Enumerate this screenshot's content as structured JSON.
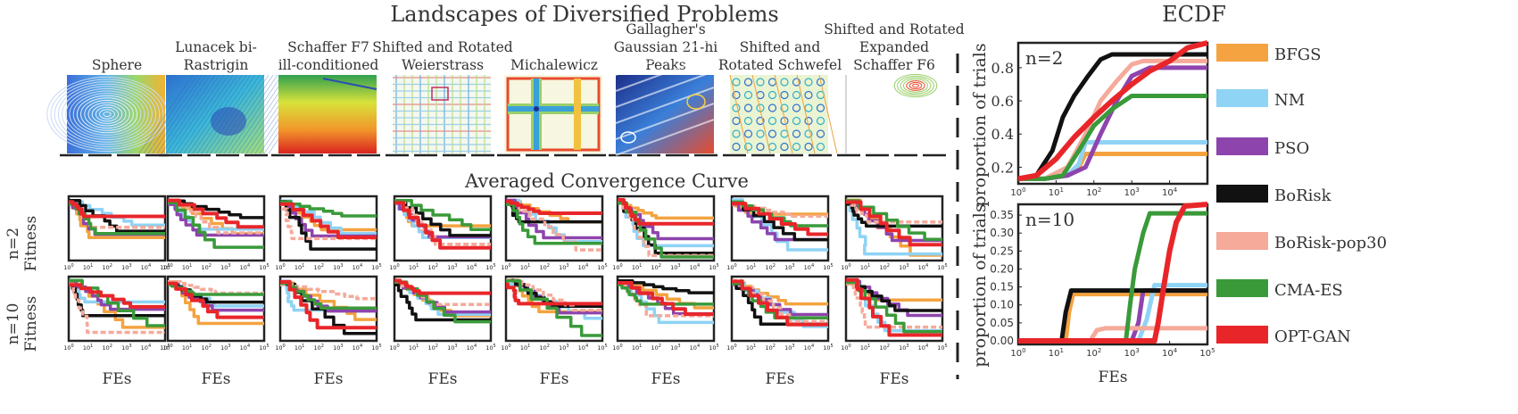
{
  "titles": {
    "landscapes": "Landscapes of Diversified Problems",
    "convergence": "Averaged Convergence Curve",
    "ecdf": "ECDF"
  },
  "colors": {
    "BFGS": "#f4a340",
    "NM": "#8fd3f5",
    "PSO": "#8e44ad",
    "BoRisk": "#111111",
    "BoRisk-pop30": "#f5aa9a",
    "CMA-ES": "#3a9a3a",
    "OPT-GAN": "#e8262a"
  },
  "legend": [
    "BFGS",
    "NM",
    "PSO",
    "BoRisk",
    "BoRisk-pop30",
    "CMA-ES",
    "OPT-GAN"
  ],
  "problems": [
    {
      "name": "Sphere",
      "lines": [
        "Sphere"
      ],
      "icon": "sphere-contour"
    },
    {
      "name": "Lunacek bi-Rastrigin",
      "lines": [
        "Lunacek bi-",
        "Rastrigin"
      ],
      "icon": "lunacek-contour"
    },
    {
      "name": "Schaffer F7 ill-conditioned",
      "lines": [
        "Schaffer F7",
        "ill-conditioned"
      ],
      "icon": "schaffer-contour"
    },
    {
      "name": "Shifted and Rotated Weierstrass",
      "lines": [
        "Shifted and Rotated",
        "Weierstrass"
      ],
      "icon": "weierstrass-contour"
    },
    {
      "name": "Michalewicz",
      "lines": [
        "Michalewicz"
      ],
      "icon": "michalewicz-contour"
    },
    {
      "name": "Gallagher's Gaussian 21-hi Peaks",
      "lines": [
        "Gallagher's",
        "Gaussian 21-hi",
        "Peaks"
      ],
      "icon": "gallagher-contour"
    },
    {
      "name": "Shifted and Rotated Schwefel",
      "lines": [
        "Shifted and",
        "Rotated Schwefel"
      ],
      "icon": "schwefel-contour"
    },
    {
      "name": "Shifted and Rotated Expanded Schaffer F6",
      "lines": [
        "Shifted and Rotated",
        "Expanded",
        "Schaffer F6"
      ],
      "icon": "schaffer-f6-contour"
    }
  ],
  "rows": [
    {
      "label_n": "n=2",
      "label_y": "Fitness"
    },
    {
      "label_n": "n=10",
      "label_y": "Fitness"
    }
  ],
  "xlabel": "FEs",
  "convergence_ticks": [
    "10^0",
    "10^1",
    "10^2",
    "10^3",
    "10^4",
    "10^5"
  ],
  "chart_data": [
    {
      "type": "line",
      "title": "ECDF",
      "panel": "n=2",
      "xlabel": "",
      "ylabel": "proportion of trials",
      "xscale": "log",
      "xlim": [
        1,
        100000
      ],
      "ylim": [
        0.1,
        0.95
      ],
      "yticks": [
        0.2,
        0.4,
        0.6,
        0.8
      ],
      "ytick_labels": [
        "0.2",
        "0.4",
        "0.6",
        "0.8"
      ],
      "xtick_labels": [
        "10^0",
        "10^1",
        "10^2",
        "10^3",
        "10^4"
      ],
      "series": [
        {
          "name": "BFGS",
          "x": [
            1,
            5,
            20,
            40,
            60,
            100,
            100000
          ],
          "y": [
            0.13,
            0.13,
            0.15,
            0.2,
            0.28,
            0.28,
            0.28
          ]
        },
        {
          "name": "NM",
          "x": [
            1,
            5,
            20,
            40,
            60,
            100,
            100000
          ],
          "y": [
            0.13,
            0.13,
            0.15,
            0.22,
            0.35,
            0.35,
            0.35
          ]
        },
        {
          "name": "PSO",
          "x": [
            1,
            5,
            20,
            60,
            150,
            400,
            1000,
            3000,
            100000
          ],
          "y": [
            0.13,
            0.13,
            0.15,
            0.2,
            0.4,
            0.6,
            0.75,
            0.8,
            0.8
          ]
        },
        {
          "name": "BoRisk",
          "x": [
            1,
            3,
            8,
            15,
            30,
            70,
            150,
            300,
            400,
            100000
          ],
          "y": [
            0.13,
            0.15,
            0.3,
            0.5,
            0.63,
            0.75,
            0.85,
            0.88,
            0.88,
            0.88
          ]
        },
        {
          "name": "BoRisk-pop30",
          "x": [
            1,
            5,
            20,
            60,
            150,
            400,
            1000,
            2000,
            100000
          ],
          "y": [
            0.13,
            0.13,
            0.2,
            0.4,
            0.6,
            0.72,
            0.82,
            0.84,
            0.84
          ]
        },
        {
          "name": "CMA-ES",
          "x": [
            1,
            5,
            15,
            40,
            100,
            300,
            1000,
            100000
          ],
          "y": [
            0.13,
            0.13,
            0.15,
            0.3,
            0.45,
            0.55,
            0.63,
            0.63
          ]
        },
        {
          "name": "OPT-GAN",
          "x": [
            1,
            3,
            10,
            30,
            100,
            300,
            1000,
            3000,
            10000,
            30000,
            100000
          ],
          "y": [
            0.13,
            0.15,
            0.25,
            0.38,
            0.5,
            0.6,
            0.7,
            0.78,
            0.84,
            0.92,
            0.95
          ]
        }
      ]
    },
    {
      "type": "line",
      "title": "ECDF",
      "panel": "n=10",
      "xlabel": "FEs",
      "ylabel": "proportion of trials",
      "xscale": "log",
      "xlim": [
        1,
        100000
      ],
      "ylim": [
        -0.01,
        0.38
      ],
      "yticks": [
        0.0,
        0.05,
        0.1,
        0.15,
        0.2,
        0.25,
        0.3,
        0.35
      ],
      "ytick_labels": [
        "0.00",
        "0.05",
        "0.10",
        "0.15",
        "0.20",
        "0.25",
        "0.30",
        "0.35"
      ],
      "xtick_labels": [
        "10^0",
        "10^1",
        "10^2",
        "10^3",
        "10^4",
        "10^5"
      ],
      "series": [
        {
          "name": "BFGS",
          "x": [
            1,
            18,
            22,
            28,
            100000
          ],
          "y": [
            0.0,
            0.0,
            0.08,
            0.13,
            0.13
          ]
        },
        {
          "name": "NM",
          "x": [
            1,
            1500,
            2500,
            4000,
            100000
          ],
          "y": [
            0.0,
            0.0,
            0.06,
            0.155,
            0.155
          ]
        },
        {
          "name": "PSO",
          "x": [
            1,
            1000,
            1500,
            2000,
            100000
          ],
          "y": [
            0.0,
            0.0,
            0.05,
            0.14,
            0.14
          ]
        },
        {
          "name": "BoRisk",
          "x": [
            1,
            14,
            18,
            25,
            100000
          ],
          "y": [
            0.0,
            0.0,
            0.08,
            0.14,
            0.14
          ]
        },
        {
          "name": "BoRisk-pop30",
          "x": [
            1,
            80,
            120,
            200,
            100000
          ],
          "y": [
            0.0,
            0.0,
            0.03,
            0.035,
            0.035
          ]
        },
        {
          "name": "CMA-ES",
          "x": [
            1,
            700,
            900,
            1200,
            2000,
            3000,
            100000
          ],
          "y": [
            0.0,
            0.0,
            0.1,
            0.2,
            0.3,
            0.355,
            0.355
          ]
        },
        {
          "name": "OPT-GAN",
          "x": [
            1,
            4000,
            5000,
            7000,
            10000,
            15000,
            25000,
            100000
          ],
          "y": [
            0.0,
            0.0,
            0.05,
            0.15,
            0.25,
            0.33,
            0.375,
            0.38
          ]
        }
      ]
    }
  ]
}
